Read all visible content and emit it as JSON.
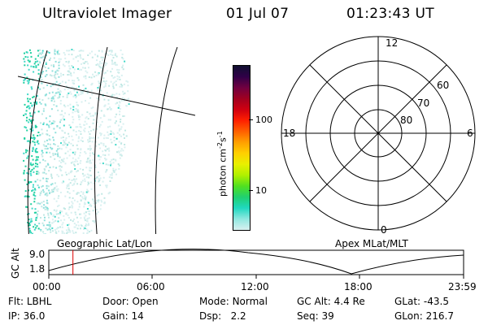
{
  "header": {
    "instrument": "Ultraviolet Imager",
    "date": "01 Jul 07",
    "time": "01:23:43 UT"
  },
  "image_panel": {
    "projection": "Geographic Lat/Lon"
  },
  "colorbar": {
    "label": "photon cm",
    "label_exp1": "-2",
    "label_s": "s",
    "label_exp2": "-1",
    "ticks": [
      "100",
      "10"
    ],
    "colors": [
      "#101030",
      "#300048",
      "#700040",
      "#a00020",
      "#d00010",
      "#ff2000",
      "#ff6000",
      "#ffa000",
      "#ffd000",
      "#e8f000",
      "#b0f000",
      "#50e020",
      "#20d070",
      "#20d8c0",
      "#90e8e0",
      "#d8f0f0"
    ]
  },
  "polar_plot": {
    "projection": "Apex MLat/MLT",
    "mlt_labels": {
      "top": "12",
      "left": "18",
      "right": "6",
      "bottom": "0"
    },
    "lat_labels": [
      "60",
      "70",
      "80"
    ]
  },
  "altitude_plot": {
    "ylabel": "GC Alt",
    "ymax": "9.0",
    "ymin": "1.8",
    "xticks": [
      "00:00",
      "06:00",
      "12:00",
      "18:00",
      "23:59"
    ],
    "current_time_fraction": 0.0582,
    "marker_color": "#dd0000"
  },
  "status": {
    "row1": [
      {
        "label": "Flt:",
        "value": "LBHL"
      },
      {
        "label": "Door:",
        "value": "Open"
      },
      {
        "label": "Mode:",
        "value": "Normal"
      },
      {
        "label": "GC Alt:",
        "value": "4.4 Re"
      },
      {
        "label": "GLat:",
        "value": "-43.5"
      }
    ],
    "row2": [
      {
        "label": "IP:",
        "value": "36.0"
      },
      {
        "label": "Gain:",
        "value": "14"
      },
      {
        "label": "Dsp:",
        "value": "2.2"
      },
      {
        "label": "Seq:",
        "value": "39"
      },
      {
        "label": "GLon:",
        "value": "216.7"
      }
    ]
  }
}
